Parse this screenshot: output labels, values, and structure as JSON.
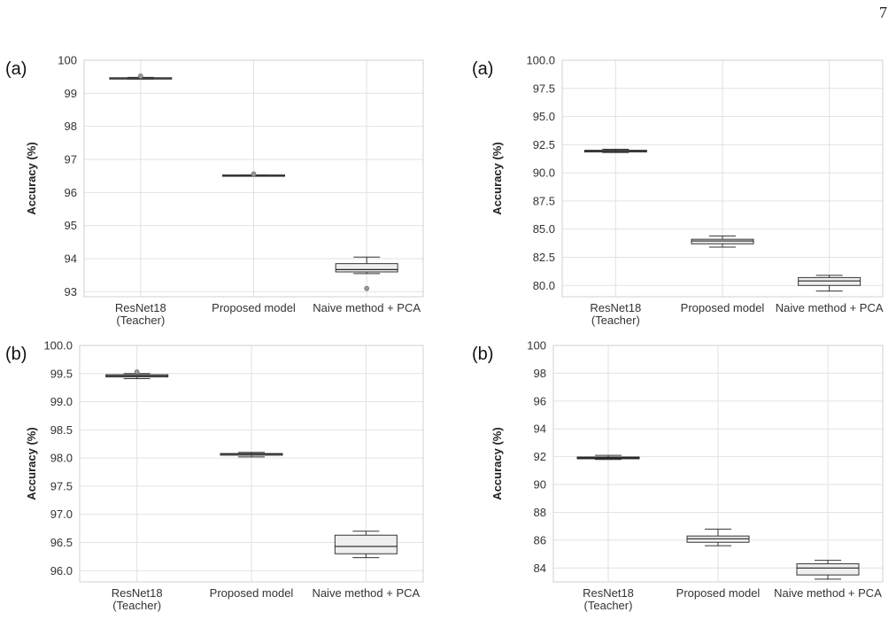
{
  "page_number": "7",
  "chart_data": [
    {
      "type": "boxplot",
      "panel_label": "(a)",
      "ylabel": "Accuracy (%)",
      "ylim": [
        92.85,
        100.0
      ],
      "yticks": [
        93,
        94,
        95,
        96,
        97,
        98,
        99,
        100
      ],
      "tick_decimals": 0,
      "grid": true,
      "categories": [
        "ResNet18\n(Teacher)",
        "Proposed model",
        "Naive method + PCA"
      ],
      "boxes": [
        {
          "min": 99.43,
          "q1": 99.44,
          "median": 99.46,
          "q3": 99.47,
          "max": 99.48,
          "outliers": [
            99.52
          ]
        },
        {
          "min": 96.51,
          "q1": 96.51,
          "median": 96.52,
          "q3": 96.53,
          "max": 96.53,
          "outliers": [
            96.56
          ]
        },
        {
          "min": 93.55,
          "q1": 93.6,
          "median": 93.67,
          "q3": 93.85,
          "max": 94.05,
          "outliers": [
            93.1
          ]
        }
      ]
    },
    {
      "type": "boxplot",
      "panel_label": "(a)",
      "ylabel": "Accuracy (%)",
      "ylim": [
        79.0,
        100.0
      ],
      "yticks": [
        80.0,
        82.5,
        85.0,
        87.5,
        90.0,
        92.5,
        95.0,
        97.5,
        100.0
      ],
      "tick_decimals": 1,
      "grid": true,
      "categories": [
        "ResNet18\n(Teacher)",
        "Proposed model",
        "Naive method + PCA"
      ],
      "boxes": [
        {
          "min": 91.8,
          "q1": 91.85,
          "median": 91.95,
          "q3": 92.0,
          "max": 92.1,
          "outliers": []
        },
        {
          "min": 83.4,
          "q1": 83.7,
          "median": 83.95,
          "q3": 84.1,
          "max": 84.4,
          "outliers": []
        },
        {
          "min": 79.5,
          "q1": 80.0,
          "median": 80.4,
          "q3": 80.7,
          "max": 80.9,
          "outliers": []
        }
      ]
    },
    {
      "type": "boxplot",
      "panel_label": "(b)",
      "ylabel": "Accuracy (%)",
      "ylim": [
        95.8,
        100.0
      ],
      "yticks": [
        96.0,
        96.5,
        97.0,
        97.5,
        98.0,
        98.5,
        99.0,
        99.5,
        100.0
      ],
      "tick_decimals": 1,
      "grid": true,
      "categories": [
        "ResNet18\n(Teacher)",
        "Proposed model",
        "Naive method + PCA"
      ],
      "boxes": [
        {
          "min": 99.41,
          "q1": 99.44,
          "median": 99.46,
          "q3": 99.48,
          "max": 99.5,
          "outliers": [
            99.53
          ]
        },
        {
          "min": 98.02,
          "q1": 98.05,
          "median": 98.07,
          "q3": 98.08,
          "max": 98.1,
          "outliers": []
        },
        {
          "min": 96.23,
          "q1": 96.3,
          "median": 96.43,
          "q3": 96.63,
          "max": 96.7,
          "outliers": []
        }
      ]
    },
    {
      "type": "boxplot",
      "panel_label": "(b)",
      "ylabel": "Accuracy (%)",
      "ylim": [
        83.0,
        100.0
      ],
      "yticks": [
        84,
        86,
        88,
        90,
        92,
        94,
        96,
        98,
        100
      ],
      "tick_decimals": 0,
      "grid": true,
      "categories": [
        "ResNet18\n(Teacher)",
        "Proposed model",
        "Naive method + PCA"
      ],
      "boxes": [
        {
          "min": 91.8,
          "q1": 91.85,
          "median": 91.92,
          "q3": 91.98,
          "max": 92.1,
          "outliers": []
        },
        {
          "min": 85.6,
          "q1": 85.85,
          "median": 86.1,
          "q3": 86.3,
          "max": 86.8,
          "outliers": []
        },
        {
          "min": 83.2,
          "q1": 83.5,
          "median": 84.0,
          "q3": 84.3,
          "max": 84.55,
          "outliers": []
        }
      ]
    }
  ]
}
